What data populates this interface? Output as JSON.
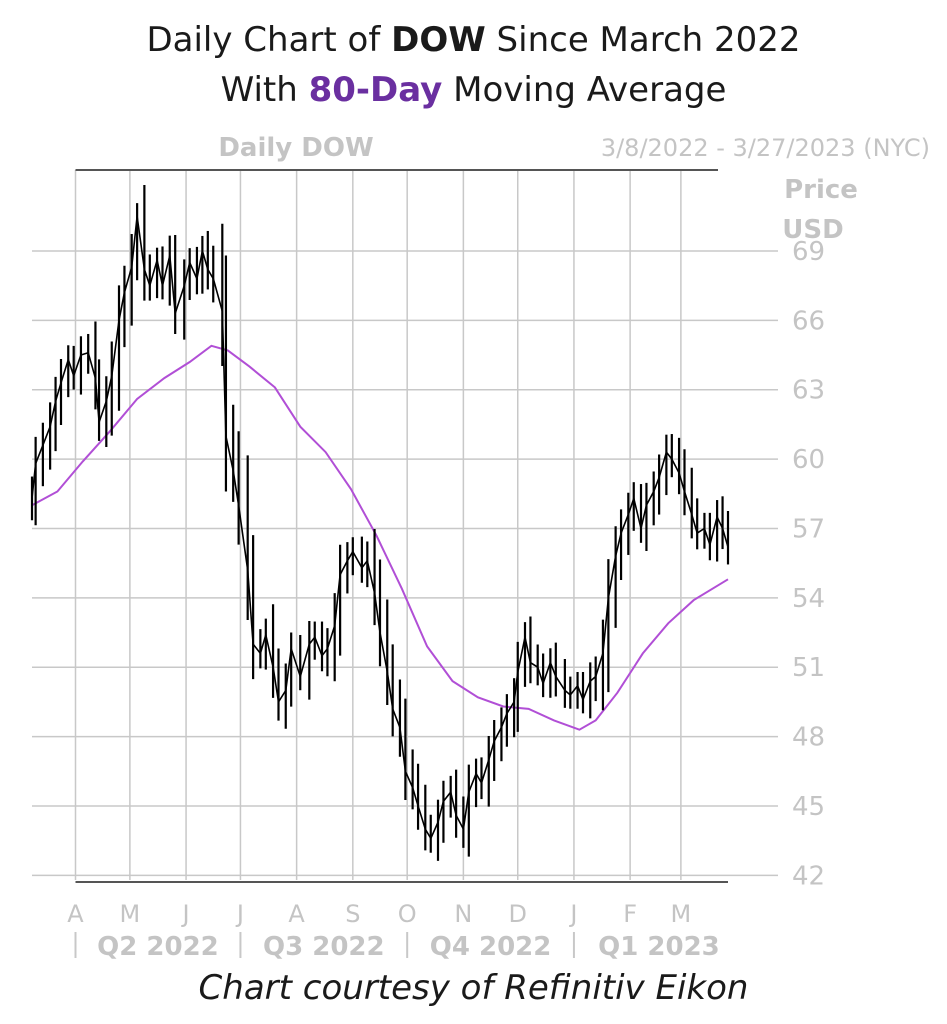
{
  "header": {
    "line1_prefix": "Daily Chart of ",
    "line1_ticker": "DOW",
    "line1_suffix": " Since March 2022",
    "line2_prefix": "With ",
    "line2_highlight": "80-Day",
    "line2_suffix": " Moving Average"
  },
  "footer": {
    "credit": "Chart courtesy of Refinitiv Eikon"
  },
  "colors": {
    "price": "#000000",
    "moving_average": "#b14fd6",
    "grid": "#c8c8c8",
    "labels": "#c4c4c4",
    "highlight": "#6a2fa0"
  },
  "chart_data": {
    "type": "line",
    "title": "Daily DOW",
    "date_range": "3/8/2022 - 3/27/2023 (NYC)",
    "ylabel": [
      "Price",
      "USD"
    ],
    "yticks": [
      42,
      45,
      48,
      51,
      54,
      57,
      60,
      63,
      66,
      69
    ],
    "ylim": [
      41.8,
      72.5
    ],
    "xlim": [
      "2022-03-08",
      "2023-03-27"
    ],
    "month_ticks": [
      {
        "label": "A",
        "date": "2022-04-01"
      },
      {
        "label": "M",
        "date": "2022-05-01"
      },
      {
        "label": "J",
        "date": "2022-06-01"
      },
      {
        "label": "J",
        "date": "2022-07-01"
      },
      {
        "label": "A",
        "date": "2022-08-01"
      },
      {
        "label": "S",
        "date": "2022-09-01"
      },
      {
        "label": "O",
        "date": "2022-10-01"
      },
      {
        "label": "N",
        "date": "2022-11-01"
      },
      {
        "label": "D",
        "date": "2022-12-01"
      },
      {
        "label": "J",
        "date": "2023-01-01"
      },
      {
        "label": "F",
        "date": "2023-02-01"
      },
      {
        "label": "M",
        "date": "2023-03-01"
      }
    ],
    "quarters": [
      {
        "label": "Q2 2022",
        "start": "2022-04-01",
        "end": "2022-07-01"
      },
      {
        "label": "Q3 2022",
        "start": "2022-07-01",
        "end": "2022-10-01"
      },
      {
        "label": "Q4 2022",
        "start": "2022-10-01",
        "end": "2023-01-01"
      },
      {
        "label": "Q1 2023",
        "start": "2023-01-01",
        "end": "2023-03-27"
      }
    ],
    "grid": true,
    "series": [
      {
        "name": "DOW",
        "style": "daily-bars",
        "points": [
          [
            "2022-03-08",
            58.3
          ],
          [
            "2022-03-10",
            59.8
          ],
          [
            "2022-03-14",
            60.6
          ],
          [
            "2022-03-18",
            61.4
          ],
          [
            "2022-03-21",
            62.5
          ],
          [
            "2022-03-24",
            63.3
          ],
          [
            "2022-03-28",
            64.3
          ],
          [
            "2022-03-31",
            63.6
          ],
          [
            "2022-04-04",
            64.5
          ],
          [
            "2022-04-08",
            64.6
          ],
          [
            "2022-04-12",
            63.5
          ],
          [
            "2022-04-14",
            61.6
          ],
          [
            "2022-04-18",
            62.5
          ],
          [
            "2022-04-21",
            63.6
          ],
          [
            "2022-04-25",
            66.0
          ],
          [
            "2022-04-28",
            67.2
          ],
          [
            "2022-05-02",
            68.3
          ],
          [
            "2022-05-05",
            70.5
          ],
          [
            "2022-05-09",
            68.2
          ],
          [
            "2022-05-12",
            67.5
          ],
          [
            "2022-05-16",
            68.6
          ],
          [
            "2022-05-19",
            67.5
          ],
          [
            "2022-05-23",
            68.8
          ],
          [
            "2022-05-26",
            66.3
          ],
          [
            "2022-05-31",
            67.5
          ],
          [
            "2022-06-03",
            68.5
          ],
          [
            "2022-06-07",
            67.8
          ],
          [
            "2022-06-10",
            69.0
          ],
          [
            "2022-06-13",
            68.2
          ],
          [
            "2022-06-16",
            67.8
          ],
          [
            "2022-06-21",
            66.4
          ],
          [
            "2022-06-23",
            61.0
          ],
          [
            "2022-06-27",
            59.5
          ],
          [
            "2022-06-30",
            58.0
          ],
          [
            "2022-07-05",
            55.2
          ],
          [
            "2022-07-08",
            52.0
          ],
          [
            "2022-07-12",
            51.6
          ],
          [
            "2022-07-15",
            52.4
          ],
          [
            "2022-07-19",
            51.0
          ],
          [
            "2022-07-22",
            49.5
          ],
          [
            "2022-07-26",
            50.0
          ],
          [
            "2022-07-29",
            51.8
          ],
          [
            "2022-08-03",
            50.6
          ],
          [
            "2022-08-08",
            52.0
          ],
          [
            "2022-08-11",
            52.3
          ],
          [
            "2022-08-15",
            51.5
          ],
          [
            "2022-08-18",
            51.8
          ],
          [
            "2022-08-22",
            52.8
          ],
          [
            "2022-08-25",
            55.0
          ],
          [
            "2022-08-29",
            55.6
          ],
          [
            "2022-09-01",
            56.0
          ],
          [
            "2022-09-06",
            55.3
          ],
          [
            "2022-09-09",
            55.6
          ],
          [
            "2022-09-13",
            54.2
          ],
          [
            "2022-09-16",
            52.5
          ],
          [
            "2022-09-20",
            50.8
          ],
          [
            "2022-09-23",
            49.2
          ],
          [
            "2022-09-27",
            48.4
          ],
          [
            "2022-09-30",
            46.5
          ],
          [
            "2022-10-04",
            45.8
          ],
          [
            "2022-10-07",
            45.0
          ],
          [
            "2022-10-11",
            44.0
          ],
          [
            "2022-10-14",
            43.6
          ],
          [
            "2022-10-18",
            44.3
          ],
          [
            "2022-10-21",
            45.2
          ],
          [
            "2022-10-25",
            45.6
          ],
          [
            "2022-10-28",
            44.6
          ],
          [
            "2022-11-01",
            44.0
          ],
          [
            "2022-11-04",
            45.6
          ],
          [
            "2022-11-08",
            46.4
          ],
          [
            "2022-11-11",
            46.0
          ],
          [
            "2022-11-15",
            47.0
          ],
          [
            "2022-11-18",
            47.8
          ],
          [
            "2022-11-22",
            48.4
          ],
          [
            "2022-11-25",
            49.0
          ],
          [
            "2022-11-29",
            49.5
          ],
          [
            "2022-12-01",
            50.8
          ],
          [
            "2022-12-05",
            52.3
          ],
          [
            "2022-12-08",
            51.2
          ],
          [
            "2022-12-12",
            51.0
          ],
          [
            "2022-12-15",
            50.3
          ],
          [
            "2022-12-19",
            51.2
          ],
          [
            "2022-12-22",
            50.6
          ],
          [
            "2022-12-27",
            50.0
          ],
          [
            "2022-12-30",
            49.8
          ],
          [
            "2023-01-03",
            50.2
          ],
          [
            "2023-01-06",
            49.6
          ],
          [
            "2023-01-10",
            50.4
          ],
          [
            "2023-01-13",
            50.6
          ],
          [
            "2023-01-17",
            51.6
          ],
          [
            "2023-01-20",
            54.0
          ],
          [
            "2023-01-24",
            55.8
          ],
          [
            "2023-01-27",
            56.8
          ],
          [
            "2023-01-31",
            57.6
          ],
          [
            "2023-02-03",
            58.3
          ],
          [
            "2023-02-07",
            57.0
          ],
          [
            "2023-02-10",
            58.0
          ],
          [
            "2023-02-14",
            58.6
          ],
          [
            "2023-02-17",
            59.2
          ],
          [
            "2023-02-21",
            60.3
          ],
          [
            "2023-02-24",
            60.0
          ],
          [
            "2023-02-28",
            59.4
          ],
          [
            "2023-03-03",
            58.6
          ],
          [
            "2023-03-07",
            57.6
          ],
          [
            "2023-03-10",
            56.8
          ],
          [
            "2023-03-14",
            57.0
          ],
          [
            "2023-03-17",
            56.3
          ],
          [
            "2023-03-21",
            57.5
          ],
          [
            "2023-03-24",
            57.0
          ],
          [
            "2023-03-27",
            56.2
          ]
        ]
      },
      {
        "name": "80-Day Moving Average",
        "style": "line",
        "points": [
          [
            "2022-03-08",
            58.0
          ],
          [
            "2022-03-22",
            58.6
          ],
          [
            "2022-04-05",
            59.9
          ],
          [
            "2022-04-20",
            61.2
          ],
          [
            "2022-05-05",
            62.6
          ],
          [
            "2022-05-20",
            63.5
          ],
          [
            "2022-06-03",
            64.2
          ],
          [
            "2022-06-15",
            64.9
          ],
          [
            "2022-06-24",
            64.7
          ],
          [
            "2022-07-06",
            64.0
          ],
          [
            "2022-07-20",
            63.1
          ],
          [
            "2022-08-03",
            61.4
          ],
          [
            "2022-08-17",
            60.3
          ],
          [
            "2022-08-31",
            58.7
          ],
          [
            "2022-09-14",
            56.7
          ],
          [
            "2022-09-28",
            54.4
          ],
          [
            "2022-10-12",
            51.9
          ],
          [
            "2022-10-26",
            50.4
          ],
          [
            "2022-11-09",
            49.7
          ],
          [
            "2022-11-23",
            49.3
          ],
          [
            "2022-12-07",
            49.2
          ],
          [
            "2022-12-21",
            48.7
          ],
          [
            "2023-01-04",
            48.3
          ],
          [
            "2023-01-13",
            48.7
          ],
          [
            "2023-01-25",
            49.9
          ],
          [
            "2023-02-08",
            51.6
          ],
          [
            "2023-02-22",
            52.9
          ],
          [
            "2023-03-08",
            53.9
          ],
          [
            "2023-03-27",
            54.8
          ]
        ]
      }
    ]
  }
}
